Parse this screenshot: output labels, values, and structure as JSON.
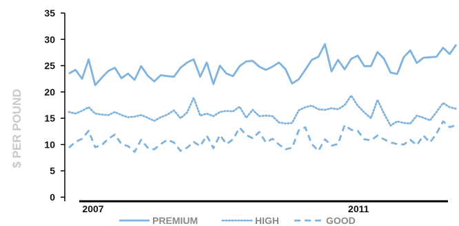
{
  "chart_data": {
    "type": "line",
    "title": "",
    "ylabel": "$ PER POUND",
    "xlabel": "",
    "ylim": [
      0,
      35
    ],
    "yticks": [
      0,
      5,
      10,
      15,
      20,
      25,
      30,
      35
    ],
    "x_labels": [
      {
        "index": 0,
        "text": "2007"
      },
      {
        "index": 48,
        "text": "2011"
      }
    ],
    "line_color": "#7fb2dc",
    "grid": false,
    "legend_position": "bottom",
    "series": [
      {
        "name": "PREMIUM",
        "style": "solid",
        "values": [
          23.5,
          24.2,
          22.5,
          26.2,
          21.3,
          22.7,
          24.0,
          24.6,
          22.6,
          23.5,
          22.3,
          24.9,
          23.1,
          22.0,
          23.2,
          23.0,
          22.9,
          24.6,
          25.6,
          26.2,
          22.9,
          25.6,
          21.5,
          25.0,
          23.5,
          23.0,
          24.9,
          25.8,
          25.9,
          24.8,
          24.2,
          24.8,
          25.6,
          24.3,
          21.6,
          22.4,
          24.2,
          26.1,
          26.7,
          29.1,
          23.9,
          26.1,
          24.3,
          26.3,
          26.9,
          24.9,
          24.9,
          27.6,
          26.3,
          23.7,
          23.4,
          26.6,
          27.9,
          25.5,
          26.5,
          26.6,
          26.7,
          28.4,
          27.2,
          29.0
        ]
      },
      {
        "name": "HIGH",
        "style": "dotted",
        "values": [
          16.2,
          15.9,
          16.4,
          17.1,
          15.9,
          15.7,
          15.6,
          16.2,
          15.6,
          15.2,
          15.3,
          15.6,
          15.1,
          14.5,
          15.2,
          15.7,
          16.5,
          15.0,
          16.1,
          18.9,
          15.5,
          15.9,
          15.4,
          16.2,
          16.4,
          16.3,
          17.2,
          15.1,
          16.6,
          15.4,
          15.5,
          15.4,
          14.2,
          14.0,
          14.1,
          16.5,
          17.1,
          17.4,
          16.7,
          16.6,
          16.9,
          16.7,
          17.5,
          19.3,
          17.4,
          16.1,
          15.0,
          18.5,
          15.9,
          13.6,
          14.4,
          14.1,
          14.0,
          15.5,
          15.1,
          14.6,
          16.2,
          17.9,
          17.1,
          16.8
        ]
      },
      {
        "name": "GOOD",
        "style": "dashed",
        "values": [
          9.4,
          10.5,
          11.1,
          12.6,
          9.5,
          9.9,
          11.1,
          11.9,
          10.1,
          9.7,
          8.6,
          10.9,
          9.4,
          9.1,
          10.1,
          10.9,
          10.4,
          8.8,
          9.4,
          10.5,
          9.7,
          11.7,
          9.3,
          11.8,
          10.1,
          11.0,
          13.2,
          11.8,
          11.2,
          12.4,
          10.4,
          11.1,
          10.0,
          9.1,
          9.4,
          12.7,
          13.3,
          10.1,
          8.8,
          11.0,
          9.8,
          10.1,
          13.7,
          12.8,
          12.6,
          11.0,
          10.8,
          11.7,
          11.0,
          10.4,
          10.1,
          10.0,
          10.9,
          9.9,
          11.7,
          10.4,
          12.1,
          14.4,
          13.3,
          13.7
        ]
      }
    ]
  }
}
